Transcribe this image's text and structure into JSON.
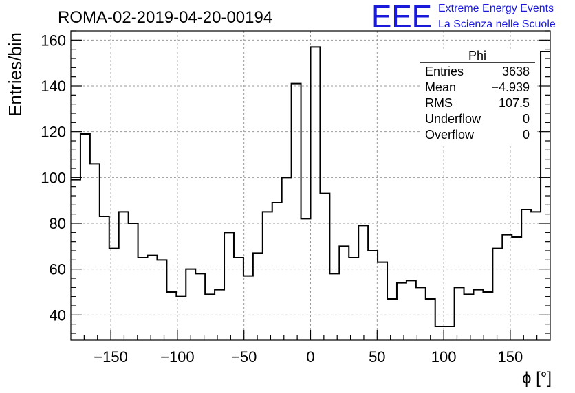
{
  "header": {
    "run_title": "ROMA-02-2019-04-20-00194",
    "logo_text": "EEE",
    "project_line1": "Extreme Energy Events",
    "project_line2": "La Scienza nelle Scuole"
  },
  "stats_box": {
    "name": "Phi",
    "rows": [
      {
        "label": "Entries",
        "value": "3638"
      },
      {
        "label": "Mean",
        "value": "−4.939"
      },
      {
        "label": "RMS",
        "value": "107.5"
      },
      {
        "label": "Underflow",
        "value": "0"
      },
      {
        "label": "Overflow",
        "value": "0"
      }
    ]
  },
  "colors": {
    "line": "#000000",
    "grid": "#999999",
    "brand": "#1a1adb"
  },
  "chart_data": {
    "type": "histogram",
    "title": "ROMA-02-2019-04-20-00194",
    "xlabel": "ϕ [°]",
    "ylabel": "Entries/bin",
    "xlim": [
      -180,
      180
    ],
    "ylim": [
      29,
      164
    ],
    "grid": true,
    "bin_width": 7.2,
    "x_ticks": [
      -150,
      -100,
      -50,
      0,
      50,
      100,
      150
    ],
    "x_tick_labels": [
      "−150",
      "−100",
      "−50",
      "0",
      "50",
      "100",
      "150"
    ],
    "y_ticks": [
      40,
      60,
      80,
      100,
      120,
      140,
      160
    ],
    "y_tick_labels": [
      "40",
      "60",
      "80",
      "100",
      "120",
      "140",
      "160"
    ],
    "values": [
      99,
      119,
      106,
      83,
      69,
      85,
      80,
      65,
      66,
      64,
      50,
      48,
      60,
      58,
      49,
      51,
      76,
      65,
      57,
      67,
      85,
      89,
      100,
      141,
      82,
      157,
      93,
      58,
      70,
      65,
      79,
      68,
      63,
      47,
      54,
      55,
      52,
      47,
      35,
      35,
      52,
      49,
      51,
      50,
      69,
      75,
      74,
      86,
      85,
      155
    ]
  }
}
